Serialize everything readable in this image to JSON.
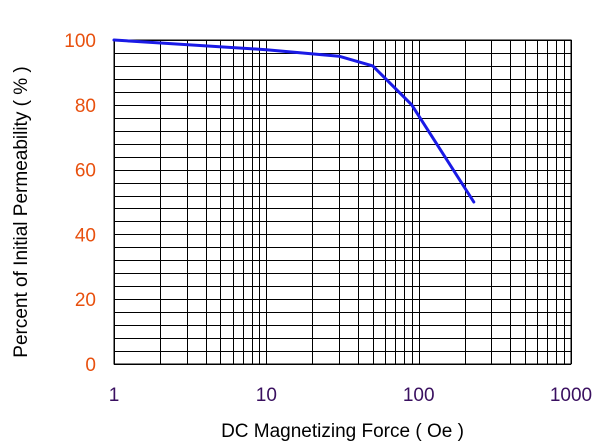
{
  "chart_data": {
    "type": "line",
    "title": "",
    "xlabel": "DC Magnetizing Force ( Oe )",
    "ylabel": "Percent of Initial Permeability ( % )",
    "xscale": "log",
    "xlim": [
      1,
      1000
    ],
    "ylim": [
      0,
      100
    ],
    "x_ticks": [
      {
        "value": 1,
        "label": "1"
      },
      {
        "value": 10,
        "label": "10"
      },
      {
        "value": 100,
        "label": "100"
      },
      {
        "value": 1000,
        "label": "1000"
      }
    ],
    "y_ticks": [
      {
        "value": 0,
        "label": "0"
      },
      {
        "value": 20,
        "label": "20"
      },
      {
        "value": 40,
        "label": "40"
      },
      {
        "value": 60,
        "label": "60"
      },
      {
        "value": 80,
        "label": "80"
      },
      {
        "value": 100,
        "label": "100"
      }
    ],
    "y_grid_step": 4,
    "grid": true,
    "legend": false,
    "series": [
      {
        "color": "#1a1ae6",
        "x": [
          1,
          10,
          30,
          50,
          90,
          230
        ],
        "y": [
          100,
          97,
          95,
          92,
          80,
          50
        ]
      }
    ],
    "colors": {
      "x_tick_label": "#3a1060",
      "y_tick_label": "#e8500e",
      "grid": "#000000"
    }
  }
}
